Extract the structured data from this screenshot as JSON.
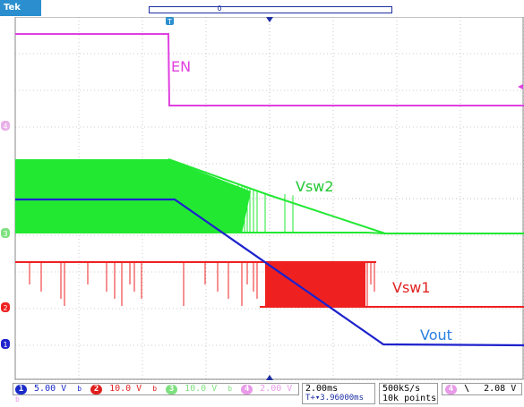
{
  "scope": {
    "brand": "Tek",
    "acq_state": "Stop"
  },
  "markers": {
    "trigger_position": "T",
    "record_window": "0",
    "channel_ground": [
      "4",
      "3",
      "2",
      "1"
    ]
  },
  "traces": {
    "en_label": "EN",
    "vsw2_label": "Vsw2",
    "vsw1_label": "Vsw1",
    "vout_label": "Vout"
  },
  "readout": {
    "channels": [
      {
        "num": "1",
        "scale": "5.00 V",
        "color": "#1b2bc9"
      },
      {
        "num": "2",
        "scale": "10.0 V",
        "color": "#e02020"
      },
      {
        "num": "3",
        "scale": "10.0 V",
        "color": "#22c832"
      },
      {
        "num": "4",
        "scale": "2.00 V",
        "color": "#e040e0"
      }
    ],
    "bw_symbol": "b",
    "timebase": "2.00ms",
    "delay": "T+▾3.96000ms",
    "sample_rate": "500kS/s",
    "record_length": "10k points",
    "trigger_channel": "4",
    "trigger_slope": "\\",
    "trigger_level": "2.08 V"
  },
  "colors": {
    "en": "#e040e0",
    "vsw2": "#22e832",
    "vsw2_label": "#22c832",
    "vsw1": "#ef2020",
    "vout": "#1d22cc",
    "vout_label": "#2a7fe0",
    "grid": "#bdbdbd",
    "tek_blue": "#2b8fcf"
  }
}
